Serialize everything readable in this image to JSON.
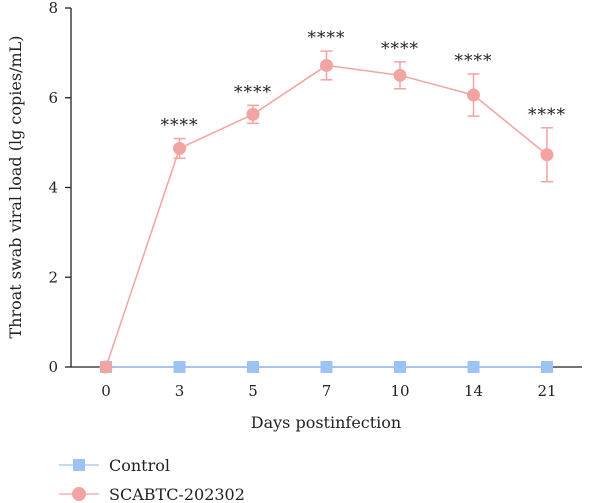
{
  "chart_data": {
    "type": "line",
    "title": "",
    "xlabel": "Days postinfection",
    "ylabel": "Throat swab viral load (lg copies/mL)",
    "categories": [
      "0",
      "3",
      "5",
      "7",
      "10",
      "14",
      "21"
    ],
    "ylim": [
      0,
      8
    ],
    "yticks": [
      0,
      2,
      4,
      6,
      8
    ],
    "grid": false,
    "legend_position": "bottom-left",
    "series": [
      {
        "name": "Control",
        "marker": "square",
        "color": "#9dc3f5",
        "values": [
          0,
          0,
          0,
          0,
          0,
          0,
          0
        ],
        "errors": [
          0,
          0,
          0,
          0,
          0,
          0,
          0
        ]
      },
      {
        "name": "SCABTC-202302",
        "marker": "circle",
        "color": "#f4a3a3",
        "values": [
          0,
          4.87,
          5.63,
          6.72,
          6.5,
          6.06,
          4.73
        ],
        "errors": [
          0,
          0.22,
          0.2,
          0.32,
          0.3,
          0.47,
          0.6
        ]
      }
    ],
    "annotations": [
      "",
      "****",
      "****",
      "****",
      "****",
      "****",
      "****"
    ]
  }
}
